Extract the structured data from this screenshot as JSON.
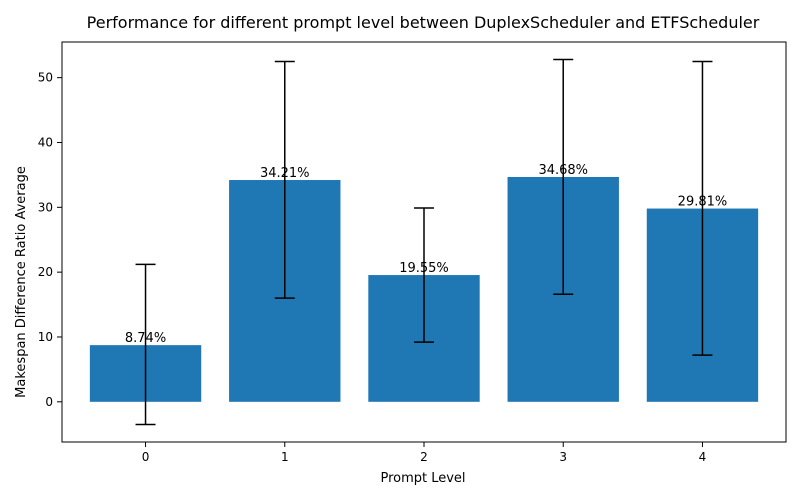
{
  "chart_data": {
    "type": "bar",
    "title": "Performance for different prompt level between DuplexScheduler and ETFScheduler",
    "xlabel": "Prompt Level",
    "ylabel": "Makespan Difference Ratio Average",
    "categories": [
      "0",
      "1",
      "2",
      "3",
      "4"
    ],
    "values": [
      8.74,
      34.21,
      19.55,
      34.68,
      29.81
    ],
    "data_labels": [
      "8.74%",
      "34.21%",
      "19.55%",
      "34.68%",
      "29.81%"
    ],
    "error_low": [
      -3.5,
      16.0,
      9.2,
      16.6,
      7.2
    ],
    "error_high": [
      21.2,
      52.5,
      29.9,
      52.8,
      52.5
    ],
    "y_ticks": [
      0,
      10,
      20,
      30,
      40,
      50
    ],
    "ylim": [
      -6.2,
      55.5
    ],
    "bar_color": "#1f77b4",
    "error_color": "#000000",
    "grid": false,
    "legend": "none"
  }
}
